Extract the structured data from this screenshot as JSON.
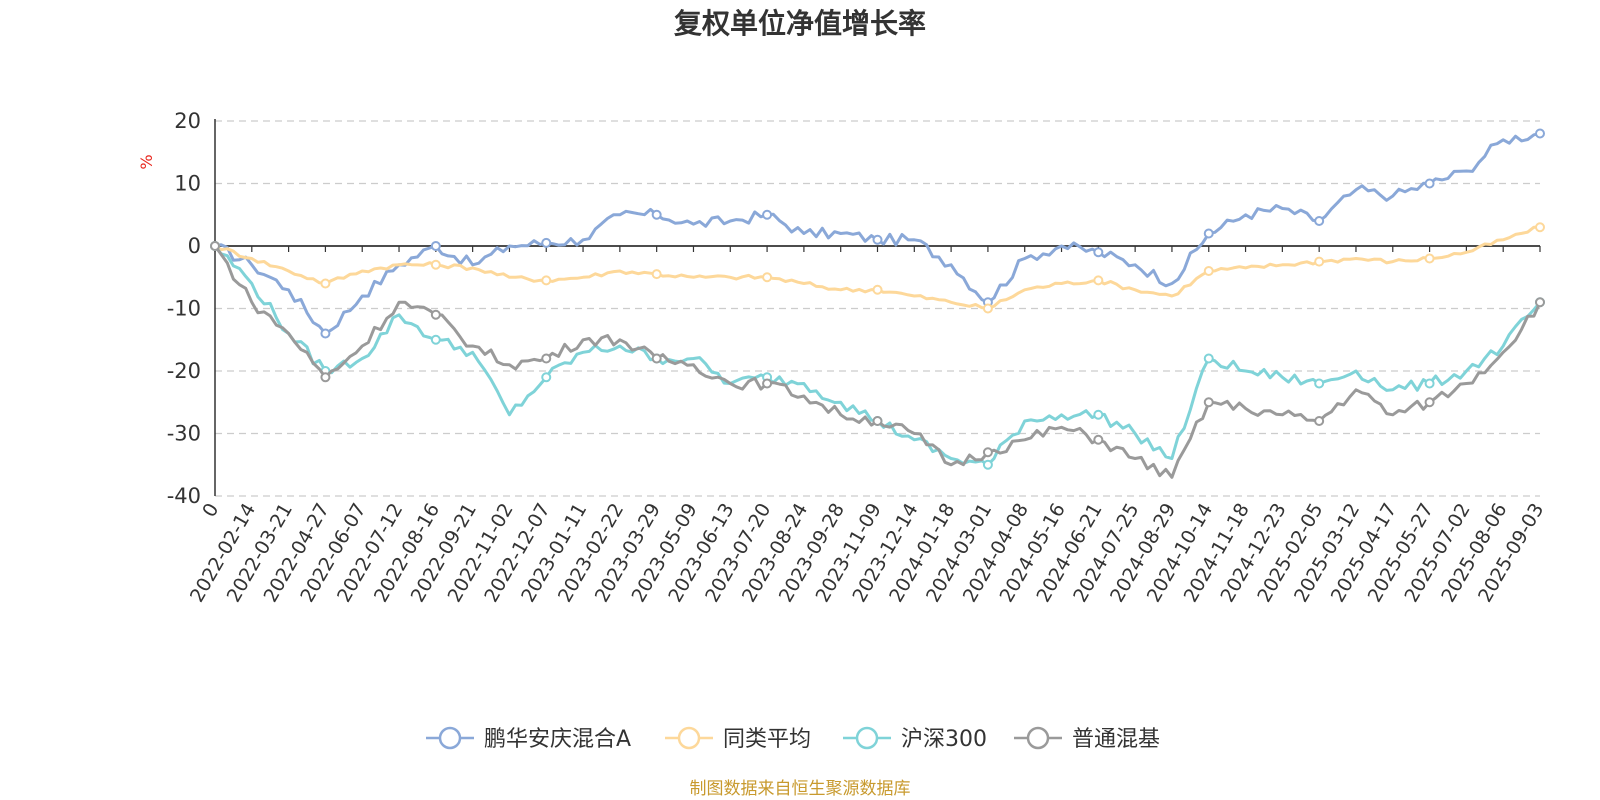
{
  "chart_data": {
    "type": "line",
    "title": "复权单位净值增长率",
    "ylabel": "%",
    "ylim": [
      -40,
      20
    ],
    "yticks": [
      20,
      10,
      0,
      -10,
      -20,
      -30,
      -40
    ],
    "grid": true,
    "legend_position": "bottom",
    "x": [
      "0",
      "2022-02-14",
      "2022-03-21",
      "2022-04-27",
      "2022-06-07",
      "2022-07-12",
      "2022-08-16",
      "2022-09-21",
      "2022-11-02",
      "2022-12-07",
      "2023-01-11",
      "2023-02-22",
      "2023-03-29",
      "2023-05-09",
      "2023-06-13",
      "2023-07-20",
      "2023-08-24",
      "2023-09-28",
      "2023-11-09",
      "2023-12-14",
      "2024-01-18",
      "2024-03-01",
      "2024-04-08",
      "2024-05-16",
      "2024-06-21",
      "2024-07-25",
      "2024-08-29",
      "2024-10-14",
      "2024-11-18",
      "2024-12-23",
      "2025-02-05",
      "2025-03-12",
      "2025-04-17",
      "2025-05-27",
      "2025-07-02",
      "2025-08-06",
      "2025-09-03"
    ],
    "series": [
      {
        "name": "鹏华安庆混合A",
        "color": "#8aa8d8",
        "values": [
          0,
          -3,
          -7,
          -14,
          -8,
          -3,
          0,
          -3,
          0,
          0.5,
          1,
          5,
          5,
          3.5,
          4,
          5,
          2,
          2,
          1,
          1,
          -3,
          -9,
          -2,
          0,
          -1,
          -3,
          -6,
          2,
          5,
          6,
          4,
          9,
          8,
          10,
          12,
          17,
          18
        ]
      },
      {
        "name": "同类平均",
        "color": "#fdd89a",
        "values": [
          0,
          -2,
          -4,
          -6,
          -4,
          -3,
          -3,
          -3.5,
          -5,
          -5.5,
          -5,
          -4,
          -4.5,
          -5,
          -5,
          -5,
          -6,
          -7,
          -7,
          -8,
          -9,
          -10,
          -7,
          -6,
          -5.5,
          -7,
          -8,
          -4,
          -3.5,
          -3,
          -2.5,
          -2,
          -2.5,
          -2,
          -1,
          1,
          3
        ]
      },
      {
        "name": "沪深300",
        "color": "#7fd3d8",
        "values": [
          0,
          -6,
          -14,
          -20,
          -18,
          -11,
          -15,
          -17,
          -27,
          -21,
          -17,
          -16,
          -18,
          -18,
          -22,
          -21,
          -22,
          -25,
          -28,
          -31,
          -34,
          -35,
          -28,
          -27,
          -27,
          -30,
          -34,
          -18,
          -20,
          -21,
          -22,
          -20,
          -23,
          -22,
          -20,
          -16,
          -9
        ]
      },
      {
        "name": "普通混基",
        "color": "#9a9a9a",
        "values": [
          0,
          -9,
          -14,
          -21,
          -16,
          -9,
          -11,
          -16,
          -19,
          -18,
          -15,
          -15,
          -18,
          -19,
          -22,
          -22,
          -24,
          -27,
          -28,
          -30,
          -35,
          -33,
          -31,
          -29,
          -31,
          -34,
          -37,
          -25,
          -26,
          -27,
          -28,
          -23,
          -27,
          -25,
          -22,
          -17,
          -9
        ]
      }
    ],
    "source": "制图数据来自恒生聚源数据库"
  }
}
